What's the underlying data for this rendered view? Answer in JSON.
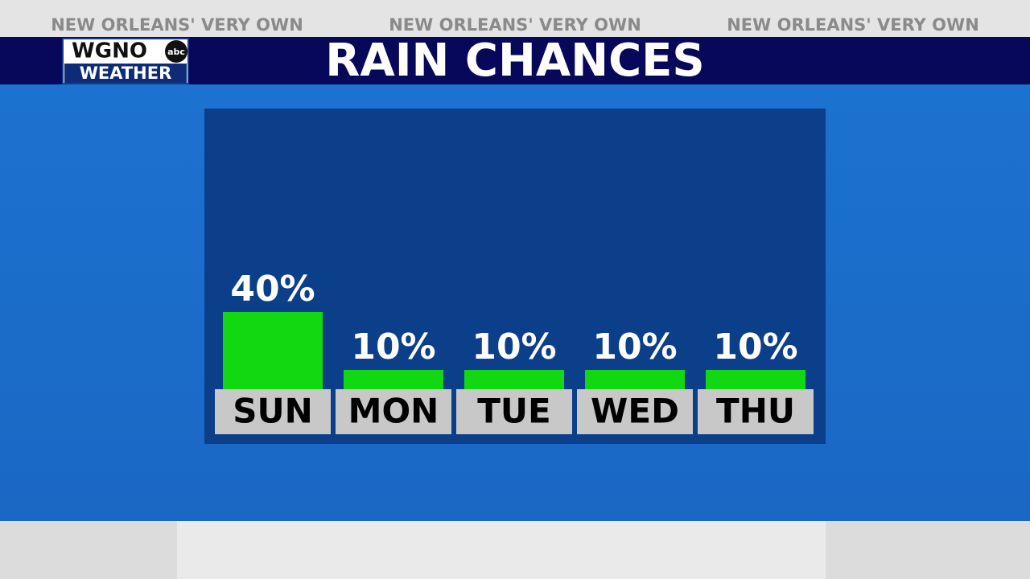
{
  "header": {
    "tagline": "NEW ORLEANS' VERY OWN",
    "logo": {
      "station": "WGNO",
      "network": "abc",
      "label": "WEATHER"
    }
  },
  "chart_data": {
    "type": "bar",
    "title": "RAIN CHANCES",
    "categories": [
      "SUN",
      "MON",
      "TUE",
      "WED",
      "THU"
    ],
    "values": [
      40,
      10,
      10,
      10,
      10
    ],
    "value_labels": [
      "40%",
      "10%",
      "10%",
      "10%",
      "10%"
    ],
    "color": "#12d812"
  }
}
